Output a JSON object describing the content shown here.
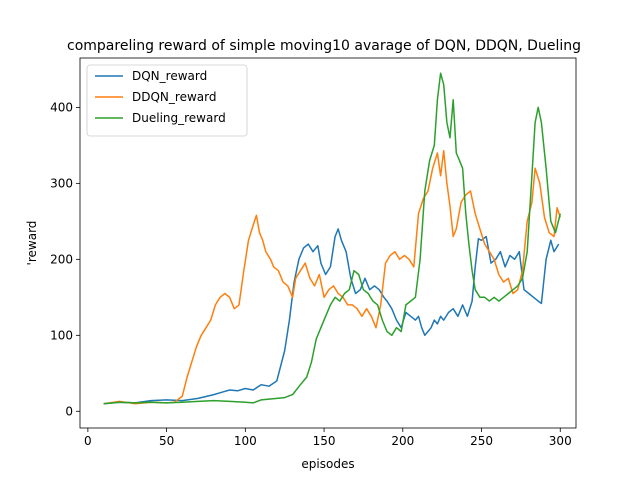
{
  "chart_data": {
    "type": "line",
    "title": "compareling reward of simple moving10 avarage of DQN, DDQN, Dueling",
    "xlabel": "episodes",
    "ylabel": "'reward",
    "xlim": [
      -5,
      310
    ],
    "ylim": [
      -22,
      465
    ],
    "xticks": [
      0,
      50,
      100,
      150,
      200,
      250,
      300
    ],
    "yticks": [
      0,
      100,
      200,
      300,
      400
    ],
    "grid": false,
    "legend_position": "top-left",
    "series": [
      {
        "name": "DQN_reward",
        "color": "#1f77b4",
        "points": [
          [
            10,
            10
          ],
          [
            20,
            12
          ],
          [
            30,
            11
          ],
          [
            40,
            14
          ],
          [
            50,
            15
          ],
          [
            60,
            14
          ],
          [
            70,
            17
          ],
          [
            80,
            22
          ],
          [
            85,
            25
          ],
          [
            90,
            28
          ],
          [
            95,
            27
          ],
          [
            100,
            30
          ],
          [
            105,
            28
          ],
          [
            110,
            35
          ],
          [
            115,
            33
          ],
          [
            120,
            40
          ],
          [
            125,
            80
          ],
          [
            128,
            120
          ],
          [
            131,
            170
          ],
          [
            134,
            200
          ],
          [
            137,
            215
          ],
          [
            140,
            220
          ],
          [
            143,
            210
          ],
          [
            146,
            218
          ],
          [
            148,
            195
          ],
          [
            151,
            180
          ],
          [
            154,
            190
          ],
          [
            157,
            230
          ],
          [
            159,
            240
          ],
          [
            161,
            225
          ],
          [
            164,
            210
          ],
          [
            167,
            175
          ],
          [
            170,
            155
          ],
          [
            173,
            160
          ],
          [
            176,
            175
          ],
          [
            179,
            160
          ],
          [
            182,
            165
          ],
          [
            185,
            160
          ],
          [
            188,
            150
          ],
          [
            190,
            145
          ],
          [
            193,
            135
          ],
          [
            196,
            120
          ],
          [
            199,
            110
          ],
          [
            202,
            130
          ],
          [
            205,
            125
          ],
          [
            208,
            120
          ],
          [
            210,
            125
          ],
          [
            212,
            110
          ],
          [
            214,
            100
          ],
          [
            216,
            105
          ],
          [
            218,
            110
          ],
          [
            220,
            120
          ],
          [
            222,
            115
          ],
          [
            224,
            125
          ],
          [
            226,
            120
          ],
          [
            229,
            130
          ],
          [
            232,
            135
          ],
          [
            235,
            125
          ],
          [
            238,
            140
          ],
          [
            241,
            125
          ],
          [
            244,
            145
          ],
          [
            246,
            190
          ],
          [
            248,
            227
          ],
          [
            250,
            225
          ],
          [
            253,
            230
          ],
          [
            256,
            195
          ],
          [
            259,
            200
          ],
          [
            262,
            210
          ],
          [
            265,
            190
          ],
          [
            268,
            205
          ],
          [
            271,
            200
          ],
          [
            274,
            210
          ],
          [
            277,
            160
          ],
          [
            280,
            155
          ],
          [
            283,
            150
          ],
          [
            286,
            145
          ],
          [
            288,
            142
          ],
          [
            291,
            200
          ],
          [
            294,
            225
          ],
          [
            296,
            210
          ],
          [
            299,
            220
          ]
        ]
      },
      {
        "name": "DDQN_reward",
        "color": "#ff7f0e",
        "points": [
          [
            10,
            10
          ],
          [
            20,
            13
          ],
          [
            30,
            10
          ],
          [
            40,
            12
          ],
          [
            50,
            11
          ],
          [
            55,
            12
          ],
          [
            60,
            20
          ],
          [
            63,
            45
          ],
          [
            66,
            65
          ],
          [
            69,
            85
          ],
          [
            72,
            100
          ],
          [
            75,
            110
          ],
          [
            78,
            120
          ],
          [
            81,
            140
          ],
          [
            84,
            150
          ],
          [
            87,
            155
          ],
          [
            90,
            150
          ],
          [
            93,
            135
          ],
          [
            96,
            140
          ],
          [
            99,
            185
          ],
          [
            102,
            225
          ],
          [
            105,
            245
          ],
          [
            107,
            258
          ],
          [
            109,
            235
          ],
          [
            111,
            225
          ],
          [
            113,
            210
          ],
          [
            116,
            200
          ],
          [
            118,
            190
          ],
          [
            121,
            185
          ],
          [
            124,
            170
          ],
          [
            127,
            165
          ],
          [
            130,
            150
          ],
          [
            132,
            175
          ],
          [
            135,
            185
          ],
          [
            138,
            195
          ],
          [
            141,
            175
          ],
          [
            144,
            165
          ],
          [
            147,
            180
          ],
          [
            150,
            150
          ],
          [
            153,
            160
          ],
          [
            156,
            165
          ],
          [
            159,
            155
          ],
          [
            162,
            150
          ],
          [
            165,
            140
          ],
          [
            168,
            140
          ],
          [
            171,
            135
          ],
          [
            174,
            125
          ],
          [
            177,
            135
          ],
          [
            180,
            125
          ],
          [
            183,
            110
          ],
          [
            186,
            140
          ],
          [
            189,
            195
          ],
          [
            192,
            205
          ],
          [
            195,
            210
          ],
          [
            198,
            200
          ],
          [
            201,
            205
          ],
          [
            204,
            200
          ],
          [
            207,
            190
          ],
          [
            210,
            260
          ],
          [
            213,
            280
          ],
          [
            216,
            290
          ],
          [
            219,
            320
          ],
          [
            222,
            340
          ],
          [
            224,
            310
          ],
          [
            226,
            343
          ],
          [
            228,
            300
          ],
          [
            230,
            270
          ],
          [
            232,
            230
          ],
          [
            234,
            240
          ],
          [
            237,
            275
          ],
          [
            240,
            285
          ],
          [
            243,
            290
          ],
          [
            246,
            260
          ],
          [
            249,
            240
          ],
          [
            252,
            220
          ],
          [
            255,
            210
          ],
          [
            258,
            200
          ],
          [
            261,
            180
          ],
          [
            264,
            170
          ],
          [
            267,
            175
          ],
          [
            270,
            155
          ],
          [
            273,
            160
          ],
          [
            276,
            185
          ],
          [
            279,
            250
          ],
          [
            282,
            275
          ],
          [
            284,
            320
          ],
          [
            287,
            300
          ],
          [
            290,
            255
          ],
          [
            293,
            235
          ],
          [
            296,
            230
          ],
          [
            298,
            268
          ],
          [
            300,
            255
          ]
        ]
      },
      {
        "name": "Dueling_reward",
        "color": "#2ca02c",
        "points": [
          [
            10,
            10
          ],
          [
            20,
            12
          ],
          [
            30,
            11
          ],
          [
            40,
            12
          ],
          [
            50,
            11
          ],
          [
            60,
            12
          ],
          [
            70,
            13
          ],
          [
            80,
            14
          ],
          [
            90,
            13
          ],
          [
            100,
            12
          ],
          [
            105,
            11
          ],
          [
            110,
            15
          ],
          [
            115,
            16
          ],
          [
            120,
            17
          ],
          [
            125,
            18
          ],
          [
            130,
            22
          ],
          [
            135,
            35
          ],
          [
            139,
            45
          ],
          [
            142,
            65
          ],
          [
            145,
            95
          ],
          [
            148,
            110
          ],
          [
            151,
            125
          ],
          [
            154,
            140
          ],
          [
            157,
            150
          ],
          [
            160,
            145
          ],
          [
            163,
            155
          ],
          [
            166,
            160
          ],
          [
            169,
            185
          ],
          [
            172,
            180
          ],
          [
            175,
            160
          ],
          [
            178,
            155
          ],
          [
            181,
            145
          ],
          [
            184,
            140
          ],
          [
            187,
            120
          ],
          [
            190,
            105
          ],
          [
            193,
            100
          ],
          [
            196,
            110
          ],
          [
            199,
            105
          ],
          [
            202,
            140
          ],
          [
            205,
            145
          ],
          [
            208,
            150
          ],
          [
            211,
            200
          ],
          [
            214,
            290
          ],
          [
            217,
            330
          ],
          [
            220,
            350
          ],
          [
            222,
            410
          ],
          [
            224,
            445
          ],
          [
            226,
            430
          ],
          [
            228,
            380
          ],
          [
            230,
            360
          ],
          [
            232,
            410
          ],
          [
            234,
            340
          ],
          [
            236,
            330
          ],
          [
            238,
            320
          ],
          [
            240,
            260
          ],
          [
            242,
            220
          ],
          [
            244,
            185
          ],
          [
            246,
            160
          ],
          [
            249,
            150
          ],
          [
            252,
            150
          ],
          [
            255,
            145
          ],
          [
            258,
            150
          ],
          [
            261,
            145
          ],
          [
            264,
            150
          ],
          [
            267,
            155
          ],
          [
            270,
            160
          ],
          [
            273,
            165
          ],
          [
            276,
            175
          ],
          [
            279,
            210
          ],
          [
            282,
            310
          ],
          [
            284,
            380
          ],
          [
            286,
            400
          ],
          [
            288,
            380
          ],
          [
            291,
            320
          ],
          [
            294,
            250
          ],
          [
            297,
            235
          ],
          [
            300,
            260
          ]
        ]
      }
    ]
  }
}
